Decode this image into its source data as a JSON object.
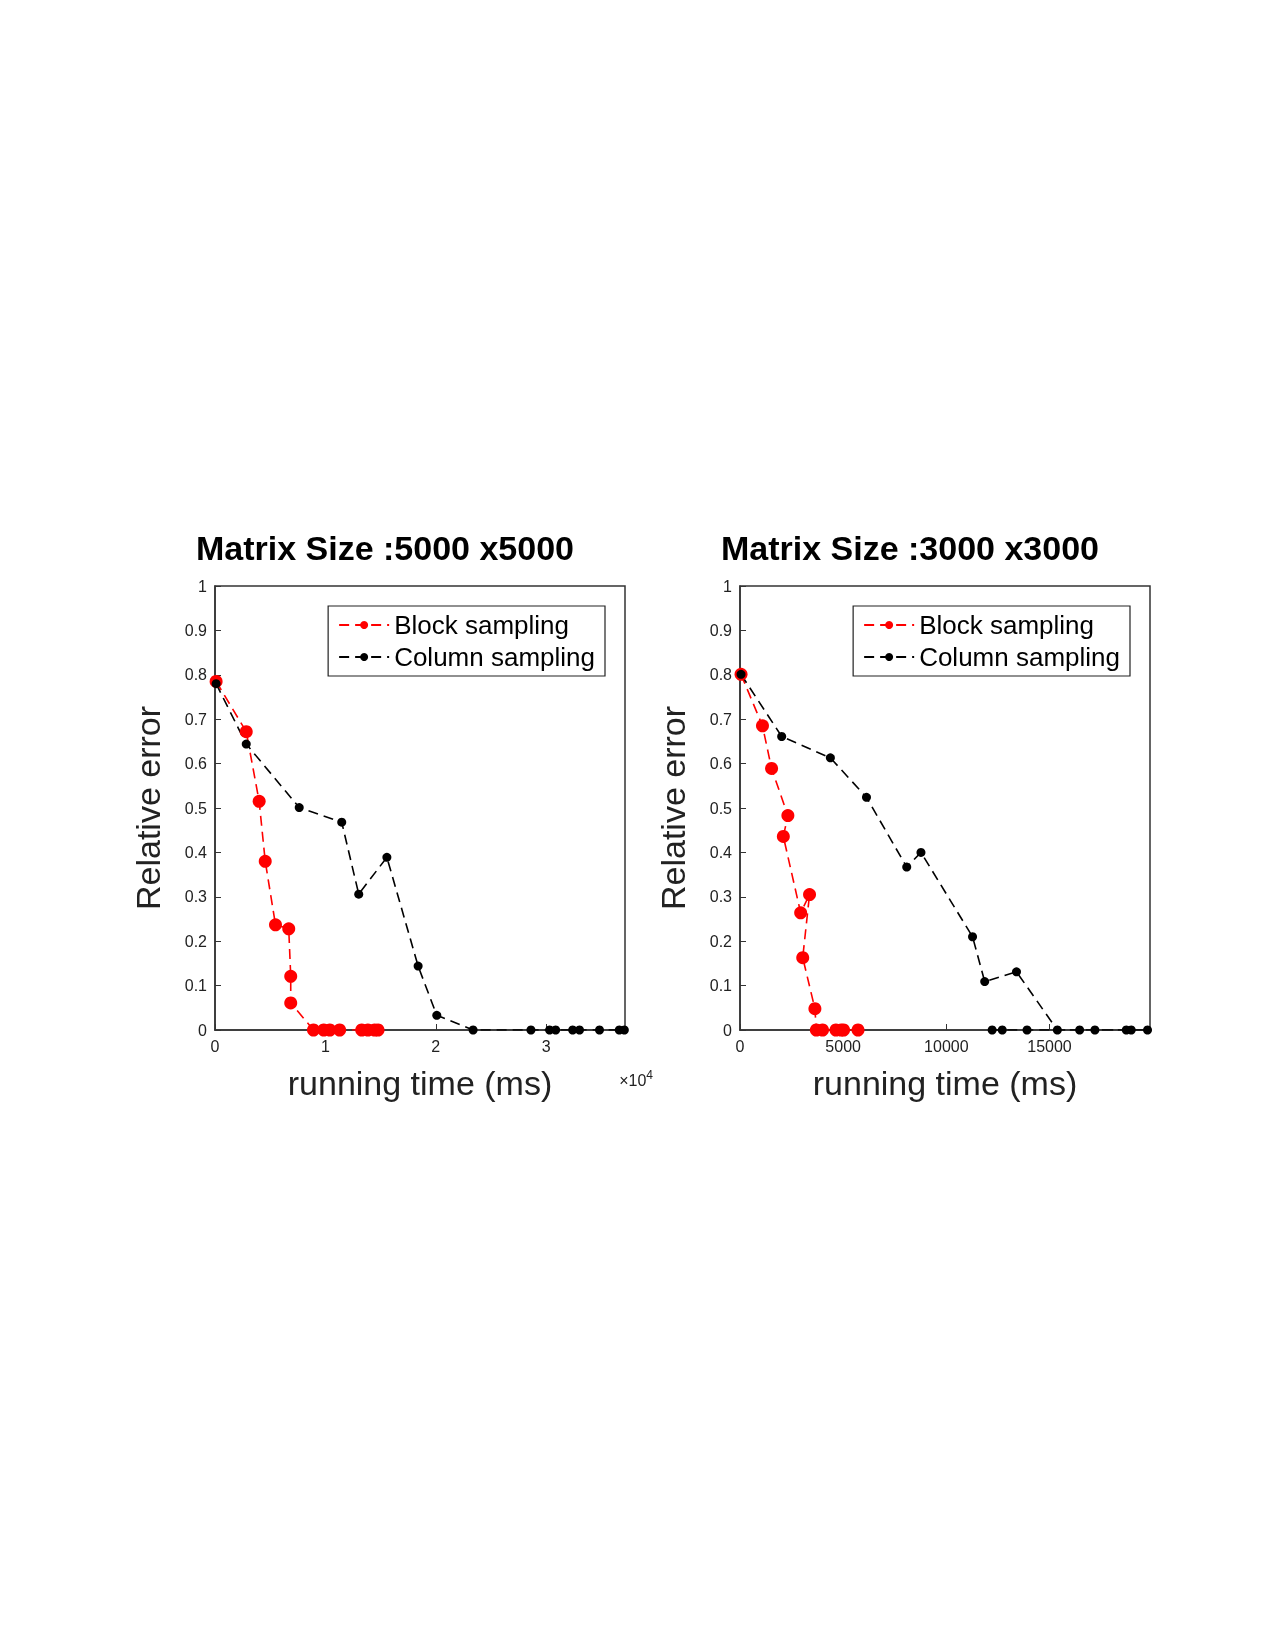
{
  "chart_data": [
    {
      "type": "line",
      "title": "Matrix Size :5000 x5000",
      "xlabel": "running time (ms)",
      "ylabel": "Relative error",
      "annotations": [
        "×10$^{4}$"
      ],
      "xlim": [
        0,
        3.714
      ],
      "xticks": [
        0,
        1,
        2,
        3
      ],
      "ylim": [
        0,
        1
      ],
      "yticks": [
        0,
        0.1,
        0.2,
        0.3,
        0.4,
        0.5,
        0.6,
        0.7,
        0.8,
        0.9,
        1
      ],
      "grid": false,
      "legend": "top right",
      "marker": "circle",
      "line_style": "dashed",
      "series": [
        {
          "name": "Block sampling",
          "color": "#ff0000",
          "x": [
            0.01,
            0.283,
            0.4,
            0.455,
            0.548,
            0.668,
            0.686,
            0.686,
            0.892,
            0.985,
            1.04,
            1.129,
            1.329,
            1.385,
            1.446,
            1.477
          ],
          "values": [
            0.785,
            0.672,
            0.515,
            0.38,
            0.237,
            0.228,
            0.121,
            0.061,
            0,
            0,
            0,
            0,
            0,
            0,
            0,
            0
          ]
        },
        {
          "name": "Column sampling",
          "color": "#000000",
          "x": [
            0.01,
            0.283,
            0.763,
            1.148,
            1.302,
            1.557,
            1.84,
            2.009,
            2.338,
            2.862,
            3.031,
            3.086,
            3.24,
            3.302,
            3.483,
            3.662,
            3.708
          ],
          "values": [
            0.78,
            0.644,
            0.501,
            0.468,
            0.306,
            0.389,
            0.144,
            0.033,
            0,
            0,
            0,
            0,
            0,
            0,
            0,
            0,
            0
          ]
        }
      ]
    },
    {
      "type": "line",
      "title": "Matrix Size :3000 x3000",
      "xlabel": "running time (ms)",
      "ylabel": "Relative error",
      "xlim": [
        0,
        19870
      ],
      "xticks": [
        0,
        5000,
        10000,
        15000
      ],
      "ylim": [
        0,
        1
      ],
      "yticks": [
        0,
        0.1,
        0.2,
        0.3,
        0.4,
        0.5,
        0.6,
        0.7,
        0.8,
        0.9,
        1
      ],
      "grid": false,
      "legend": "top right",
      "marker": "circle",
      "line_style": "dashed",
      "series": [
        {
          "name": "Block sampling",
          "color": "#ff0000",
          "x": [
            50,
            1090,
            1530,
            2320,
            2100,
            2940,
            3370,
            3040,
            3630,
            3700,
            4000,
            4650,
            4900,
            5020,
            5720
          ],
          "values": [
            0.801,
            0.685,
            0.589,
            0.483,
            0.436,
            0.264,
            0.305,
            0.163,
            0.048,
            0,
            0,
            0,
            0,
            0,
            0
          ]
        },
        {
          "name": "Column sampling",
          "color": "#000000",
          "x": [
            50,
            2020,
            4380,
            6130,
            8080,
            8770,
            11270,
            11860,
            13400,
            15380,
            16460,
            17200,
            18720,
            18960,
            19750,
            13910,
            12710,
            12220
          ],
          "values": [
            0.801,
            0.661,
            0.613,
            0.524,
            0.367,
            0.4,
            0.21,
            0.109,
            0.131,
            0,
            0,
            0,
            0,
            0,
            0,
            0,
            0,
            0
          ]
        }
      ]
    }
  ]
}
